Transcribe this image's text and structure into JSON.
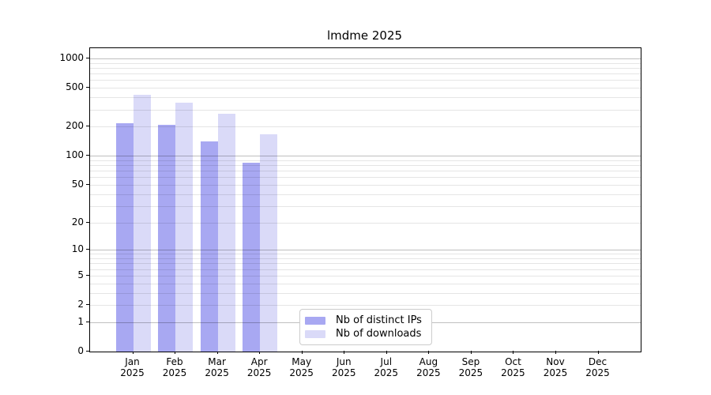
{
  "chart_data": {
    "type": "bar",
    "title": "lmdme 2025",
    "categories": [
      {
        "month": "Jan",
        "year": "2025"
      },
      {
        "month": "Feb",
        "year": "2025"
      },
      {
        "month": "Mar",
        "year": "2025"
      },
      {
        "month": "Apr",
        "year": "2025"
      },
      {
        "month": "May",
        "year": "2025"
      },
      {
        "month": "Jun",
        "year": "2025"
      },
      {
        "month": "Jul",
        "year": "2025"
      },
      {
        "month": "Aug",
        "year": "2025"
      },
      {
        "month": "Sep",
        "year": "2025"
      },
      {
        "month": "Oct",
        "year": "2025"
      },
      {
        "month": "Nov",
        "year": "2025"
      },
      {
        "month": "Dec",
        "year": "2025"
      }
    ],
    "series": [
      {
        "name": "Nb of distinct IPs",
        "color": "#a8a8f2",
        "values": [
          215,
          210,
          140,
          85,
          0,
          0,
          0,
          0,
          0,
          0,
          0,
          0
        ]
      },
      {
        "name": "Nb of downloads",
        "color": "#dadaf8",
        "values": [
          425,
          350,
          270,
          165,
          0,
          0,
          0,
          0,
          0,
          0,
          0,
          0
        ]
      }
    ],
    "y_axis": {
      "scale": "log1p",
      "tick_values": [
        0,
        1,
        2,
        5,
        10,
        20,
        50,
        100,
        200,
        500,
        1000
      ],
      "tick_labels": [
        "0",
        "1",
        "2",
        "5",
        "10",
        "20",
        "50",
        "100",
        "200",
        "500",
        "1000"
      ],
      "major_grid_values": [
        1,
        10,
        100,
        1000
      ],
      "minor_grid_decades": [
        1,
        10,
        100
      ],
      "top_value": 1250
    },
    "legend": {
      "items": [
        {
          "label": "Nb of distinct IPs",
          "color": "#a8a8f2"
        },
        {
          "label": "Nb of downloads",
          "color": "#dadaf8"
        }
      ]
    }
  },
  "colors": {
    "background": "#ffffff",
    "spine": "#000000",
    "major_grid": "rgba(0,0,0,0.25)",
    "minor_grid": "rgba(0,0,0,0.10)",
    "text": "#000000"
  }
}
